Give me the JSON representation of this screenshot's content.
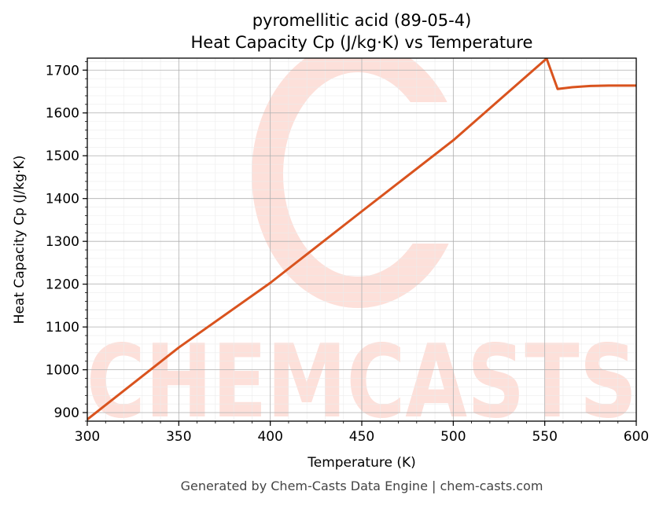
{
  "chart_data": {
    "type": "line",
    "title": "pyromellitic acid (89-05-4)",
    "subtitle": "Heat Capacity Cp (J/kg·K) vs Temperature",
    "xlabel": "Temperature (K)",
    "ylabel": "Heat Capacity Cp (J/kg·K)",
    "xlim": [
      300,
      600
    ],
    "ylim": [
      880,
      1728
    ],
    "xticks": [
      300,
      350,
      400,
      450,
      500,
      550,
      600
    ],
    "yticks": [
      900,
      1000,
      1100,
      1200,
      1300,
      1400,
      1500,
      1600,
      1700
    ],
    "grid": true,
    "series": [
      {
        "color": "#d9531e",
        "x": [
          300,
          350,
          400,
          450,
          500,
          551,
          557,
          565,
          575,
          585,
          600
        ],
        "y": [
          884,
          1052,
          1203,
          1370,
          1536,
          1727,
          1656,
          1660,
          1663,
          1664,
          1664
        ]
      }
    ]
  },
  "watermark": {
    "brand": "CHEMCASTS"
  },
  "footer": "Generated by Chem-Casts Data Engine | chem-casts.com"
}
